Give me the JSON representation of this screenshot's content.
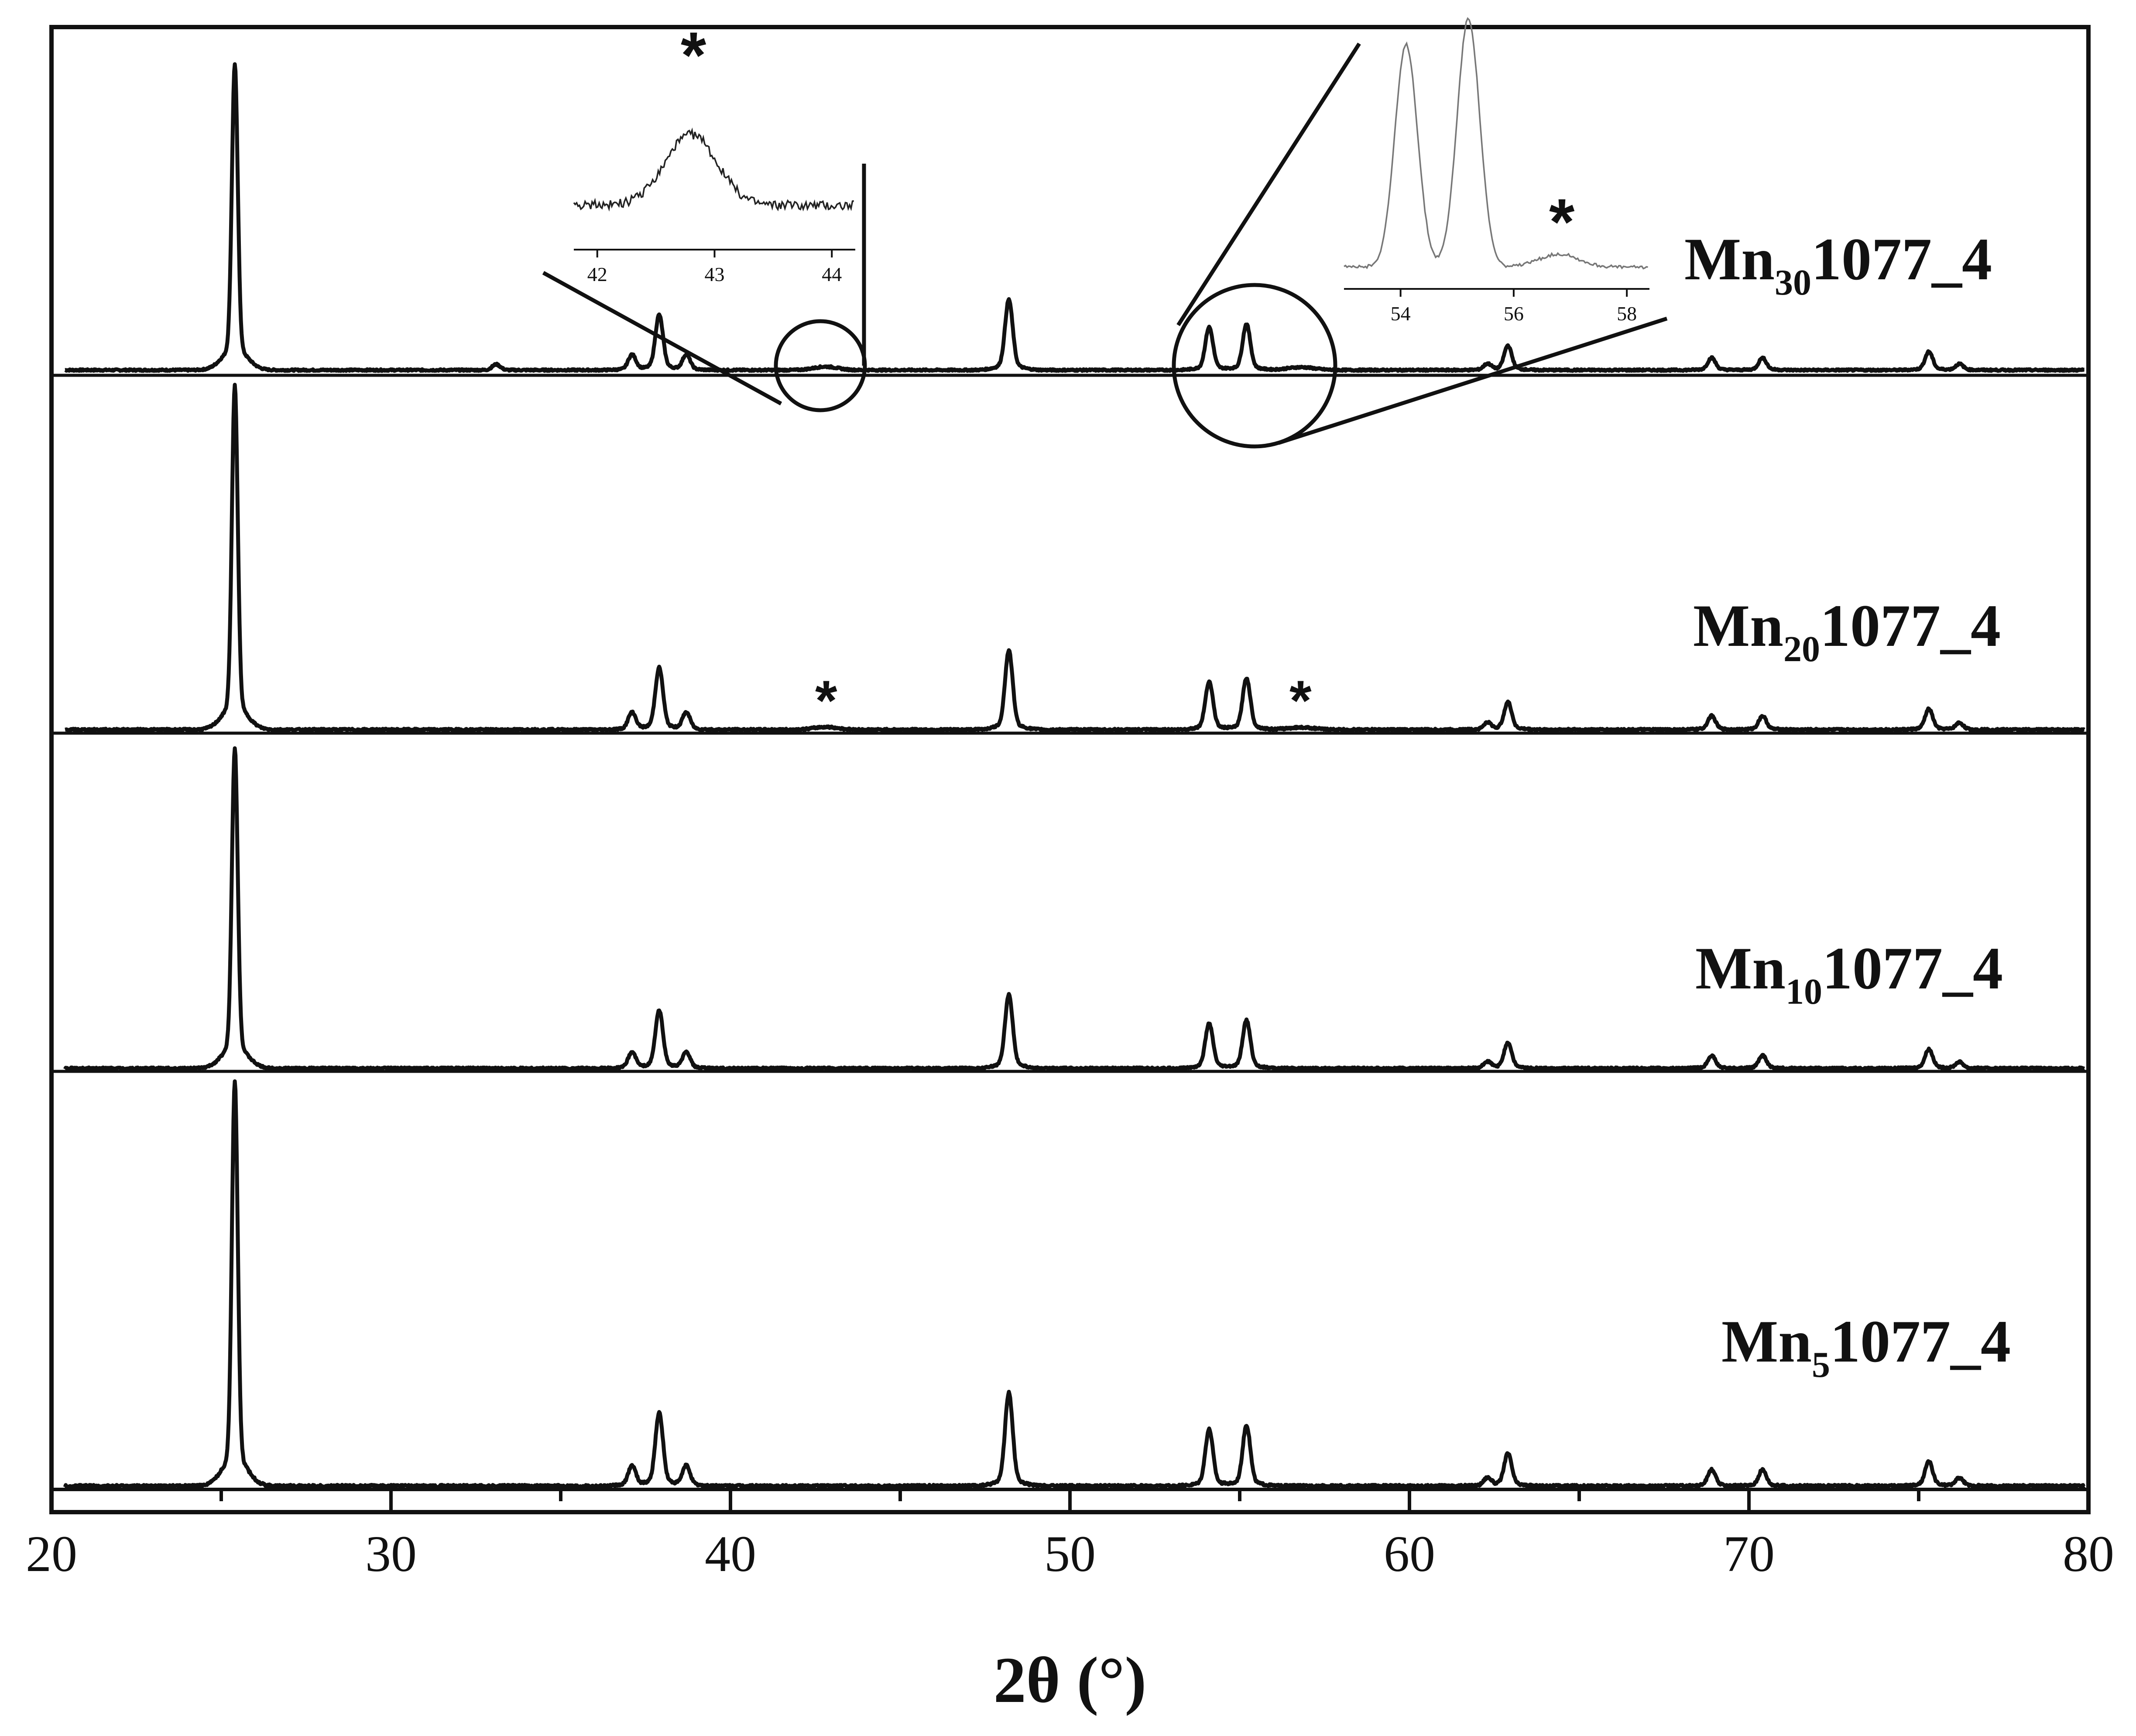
{
  "chart_data": {
    "type": "line",
    "xlabel": "2θ (°)",
    "xlim": [
      20,
      80
    ],
    "x_ticks": [
      20,
      30,
      40,
      50,
      60,
      70,
      80
    ],
    "y_axis": "offset, no ticks",
    "grid": false,
    "series": [
      {
        "label_main": "Mn",
        "label_sub": "30",
        "label_tail": "1077_4"
      },
      {
        "label_main": "Mn",
        "label_sub": "20",
        "label_tail": "1077_4"
      },
      {
        "label_main": "Mn",
        "label_sub": "10",
        "label_tail": "1077_4"
      },
      {
        "label_main": "Mn",
        "label_sub": "5",
        "label_tail": "1077_4"
      }
    ],
    "peaks": [
      {
        "x": 25.4,
        "rel": 1.0
      },
      {
        "x": 37.1,
        "rel": 0.05
      },
      {
        "x": 37.9,
        "rel": 0.18
      },
      {
        "x": 38.7,
        "rel": 0.05
      },
      {
        "x": 48.2,
        "rel": 0.23
      },
      {
        "x": 54.1,
        "rel": 0.14
      },
      {
        "x": 55.2,
        "rel": 0.15
      },
      {
        "x": 62.3,
        "rel": 0.02
      },
      {
        "x": 62.9,
        "rel": 0.08
      },
      {
        "x": 68.9,
        "rel": 0.04
      },
      {
        "x": 70.4,
        "rel": 0.04
      },
      {
        "x": 75.3,
        "rel": 0.06
      },
      {
        "x": 76.2,
        "rel": 0.02
      }
    ],
    "impurity_peaks": [
      {
        "x": 42.8,
        "marker": "*"
      },
      {
        "x": 56.8,
        "marker": "*"
      }
    ],
    "inset_left": {
      "xlim": [
        41.8,
        44.2
      ],
      "ticks": [
        42,
        43,
        44
      ],
      "peak_x": 42.8,
      "marker": "*"
    },
    "inset_right": {
      "xlim": [
        53,
        58.4
      ],
      "ticks": [
        54,
        56,
        58
      ],
      "peaks_x": [
        54.1,
        55.2,
        56.8
      ],
      "marker": "*"
    }
  }
}
